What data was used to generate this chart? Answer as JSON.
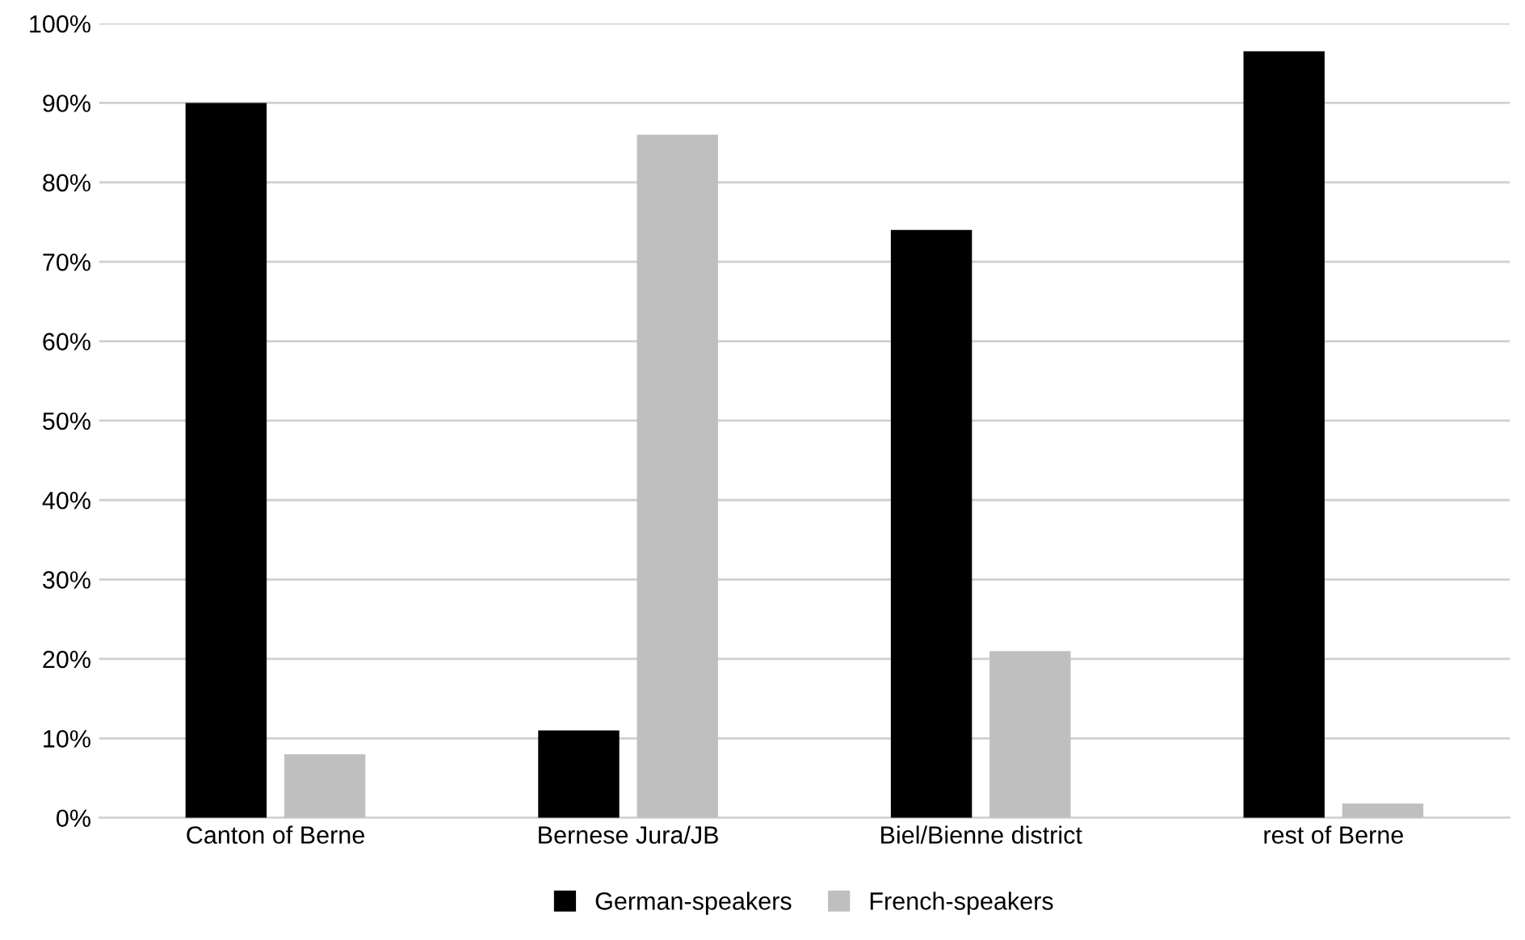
{
  "chart_data": {
    "type": "bar",
    "categories": [
      "Canton of Berne",
      "Bernese Jura/JB",
      "Biel/Bienne district",
      "rest of Berne"
    ],
    "series": [
      {
        "name": "German-speakers",
        "color": "#000000",
        "values": [
          90,
          11,
          74,
          96.5
        ]
      },
      {
        "name": "French-speakers",
        "color": "#bfbfbf",
        "values": [
          8,
          86,
          21,
          1.8
        ]
      }
    ],
    "ylim": [
      0,
      100
    ],
    "yticks": [
      {
        "value": 0,
        "label": "0%"
      },
      {
        "value": 10,
        "label": "10%"
      },
      {
        "value": 20,
        "label": "20%"
      },
      {
        "value": 30,
        "label": "30%"
      },
      {
        "value": 40,
        "label": "40%"
      },
      {
        "value": 50,
        "label": "50%"
      },
      {
        "value": 60,
        "label": "60%"
      },
      {
        "value": 70,
        "label": "70%"
      },
      {
        "value": 80,
        "label": "80%"
      },
      {
        "value": 90,
        "label": "90%"
      },
      {
        "value": 100,
        "label": "100%"
      }
    ],
    "grid": "y",
    "legend": "bottom"
  }
}
